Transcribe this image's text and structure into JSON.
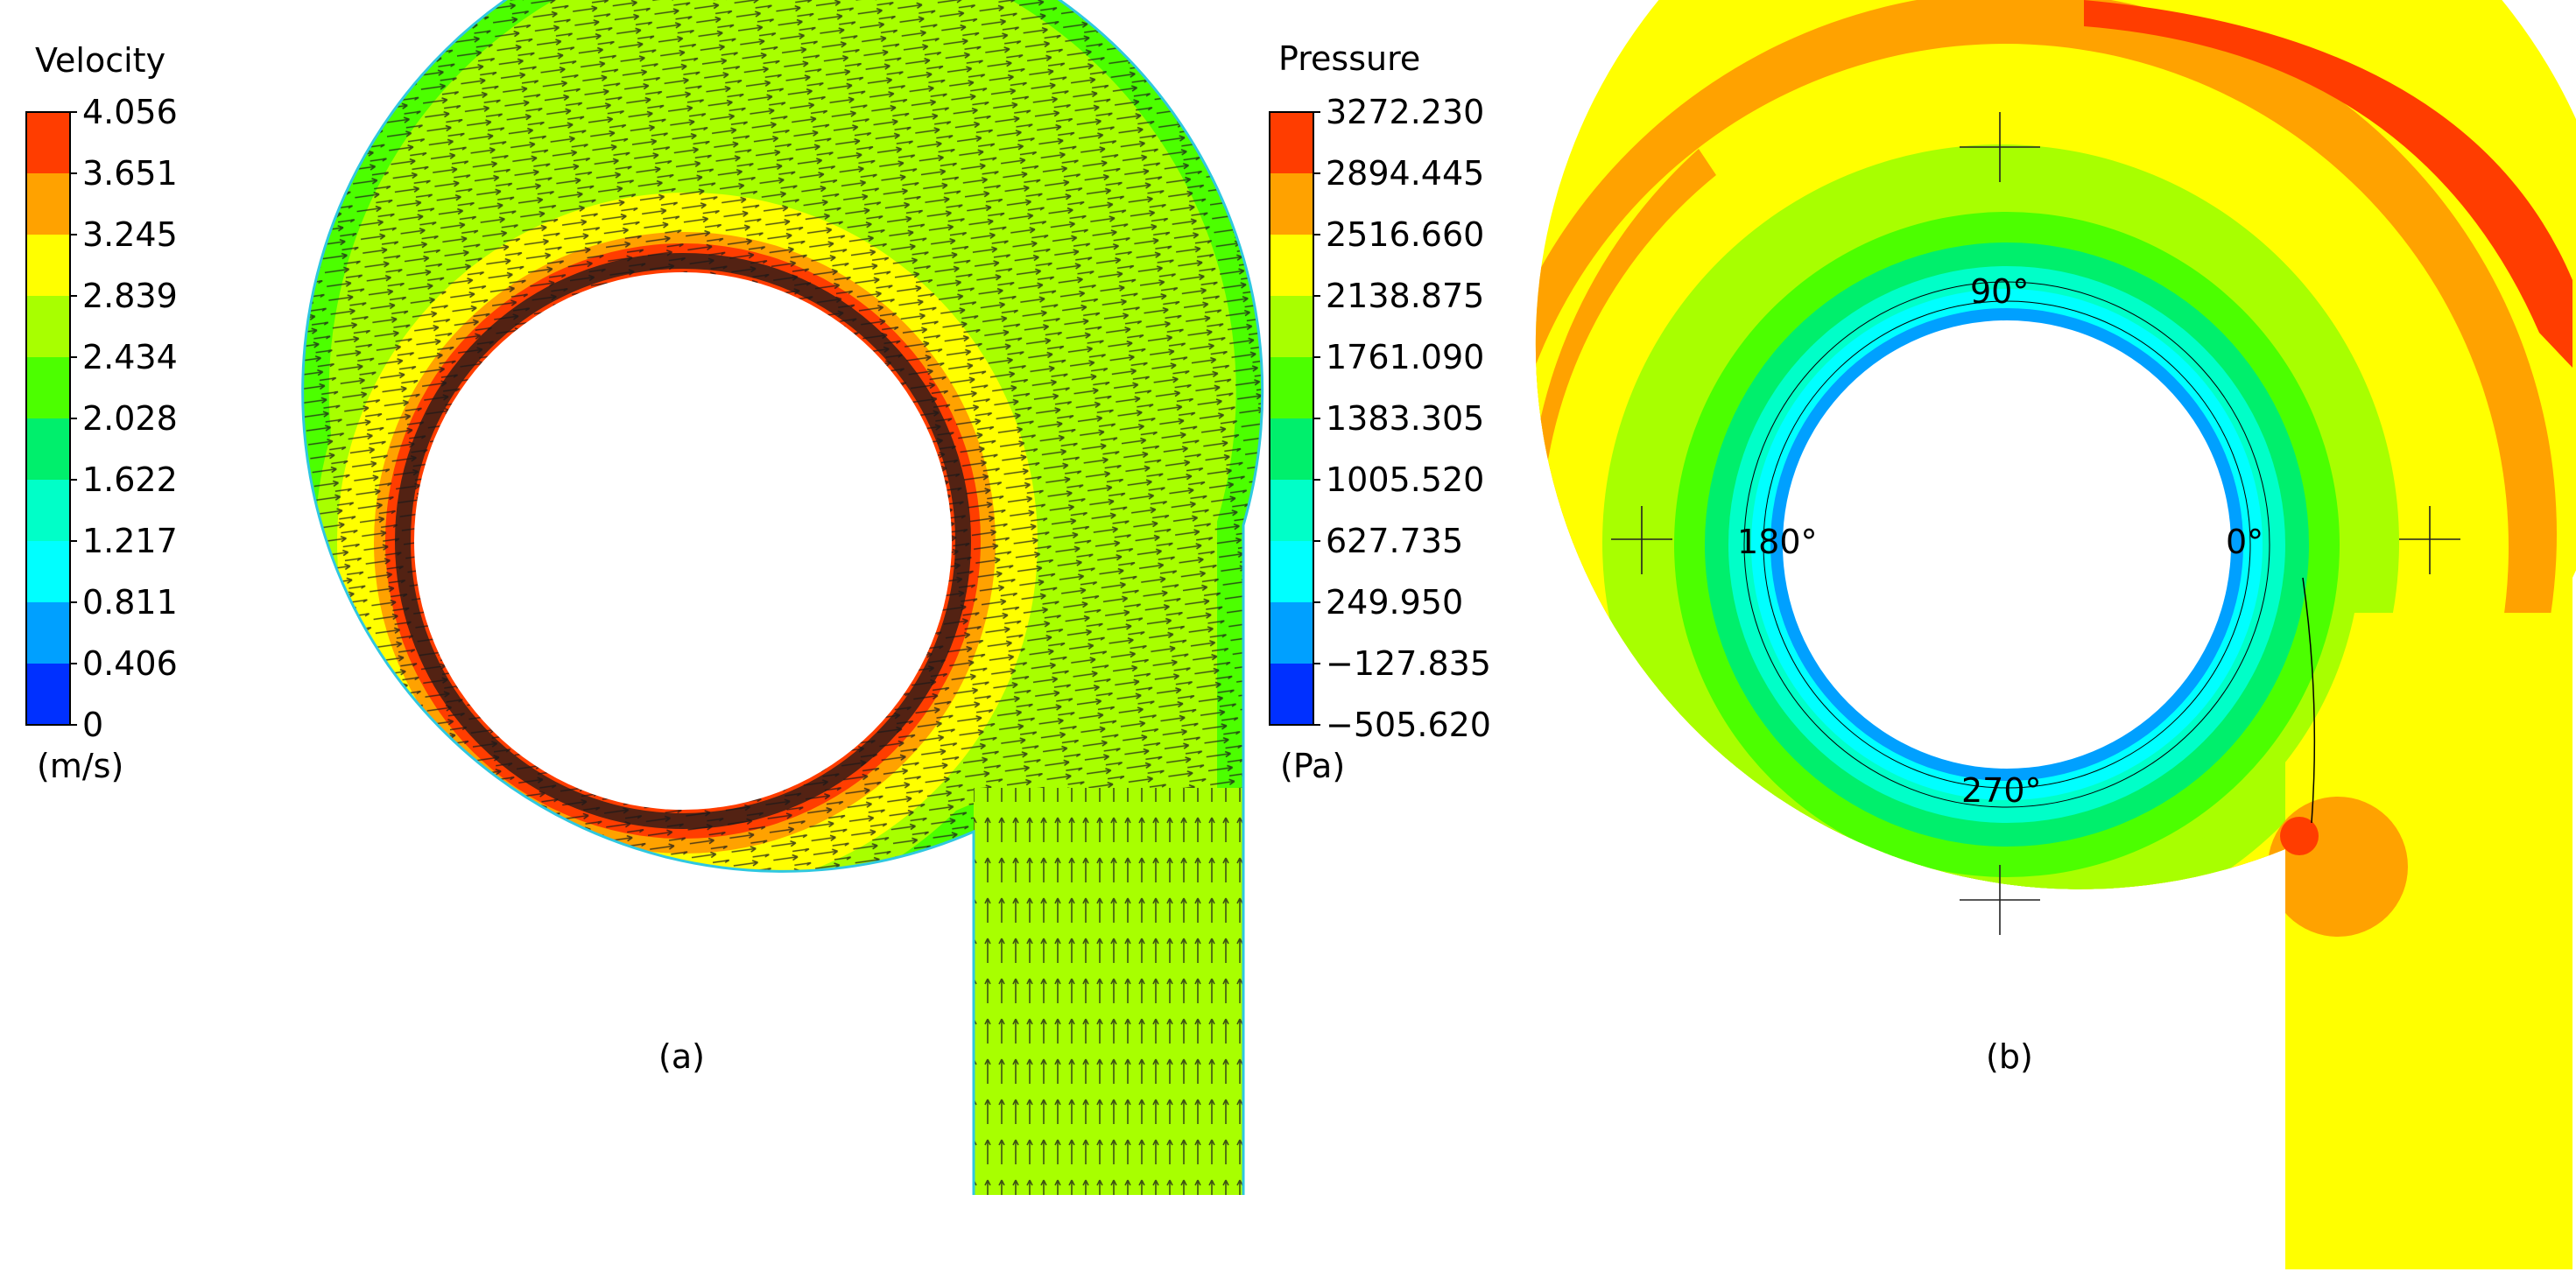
{
  "panel_a": {
    "caption": "(a)",
    "legend": {
      "title": "Velocity",
      "unit": "(m/s)",
      "ticks": [
        "4.056",
        "3.651",
        "3.245",
        "2.839",
        "2.434",
        "2.028",
        "1.622",
        "1.217",
        "0.811",
        "0.406",
        "0"
      ],
      "colors": [
        "#ff3d00",
        "#ffa200",
        "#ffff00",
        "#a8ff00",
        "#4cff00",
        "#00ef6c",
        "#00ffc8",
        "#00ffff",
        "#00a0ff",
        "#0030ff"
      ]
    },
    "band_levels": [
      {
        "level": "1.622",
        "color": "#00ffc8"
      },
      {
        "level": "2.028",
        "color": "#4cff00"
      },
      {
        "level": "2.434",
        "color": "#a8ff00"
      },
      {
        "level": "2.839",
        "color": "#ffff00"
      },
      {
        "level": "3.245",
        "color": "#ffa200"
      },
      {
        "level": "3.651",
        "color": "#ff3d00"
      }
    ]
  },
  "panel_b": {
    "caption": "(b)",
    "legend": {
      "title": "Pressure",
      "unit": "(Pa)",
      "ticks": [
        "3272.230",
        "2894.445",
        "2516.660",
        "2138.875",
        "1761.090",
        "1383.305",
        "1005.520",
        "627.735",
        "249.950",
        "−127.835",
        "−505.620"
      ],
      "colors": [
        "#ff3d00",
        "#ffa200",
        "#ffff00",
        "#a8ff00",
        "#4cff00",
        "#00ef6c",
        "#00ffc8",
        "#00ffff",
        "#00a0ff",
        "#0030ff"
      ]
    },
    "angle_labels": {
      "a0": "0°",
      "a90": "90°",
      "a180": "180°",
      "a270": "270°"
    }
  }
}
